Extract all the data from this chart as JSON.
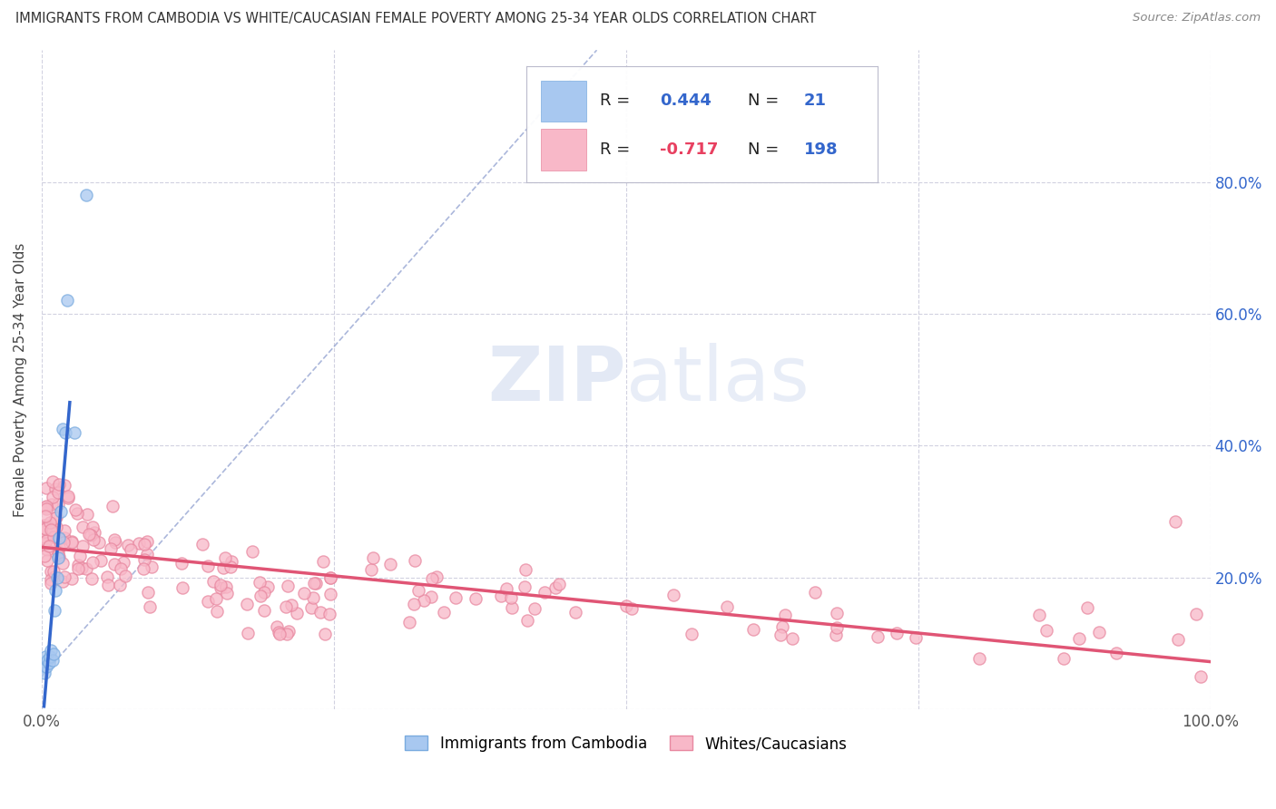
{
  "title": "IMMIGRANTS FROM CAMBODIA VS WHITE/CAUCASIAN FEMALE POVERTY AMONG 25-34 YEAR OLDS CORRELATION CHART",
  "source": "Source: ZipAtlas.com",
  "ylabel": "Female Poverty Among 25-34 Year Olds",
  "xlim": [
    0,
    1.0
  ],
  "ylim": [
    0,
    1.0
  ],
  "color_cambodia_fill": "#a8c8f0",
  "color_cambodia_edge": "#7aabdf",
  "color_white_fill": "#f8b8c8",
  "color_white_edge": "#e888a0",
  "color_cambodia_line": "#3366cc",
  "color_white_line": "#e05575",
  "color_ref_line": "#8899cc",
  "watermark_color": "#cdd8ee",
  "background_color": "#ffffff",
  "grid_color": "#ccccdd",
  "legend_box_color": "#eeeeee",
  "text_color_dark": "#333333",
  "text_color_blue": "#3366cc",
  "text_color_pink": "#e84060"
}
